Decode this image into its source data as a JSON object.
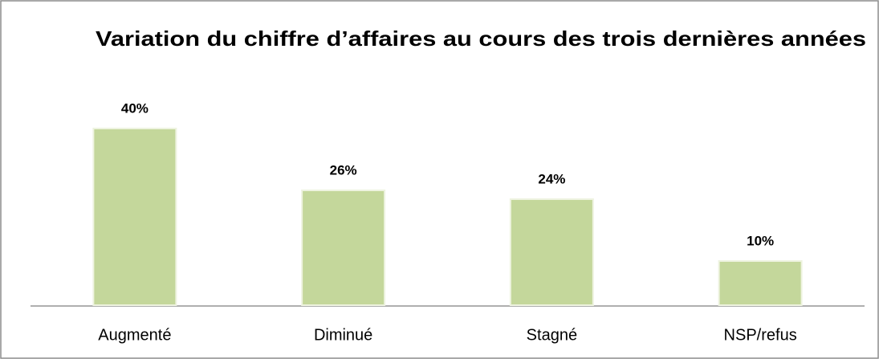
{
  "chart_data": {
    "type": "bar",
    "title": "Variation du chiffre d’affaires au cours des trois dernières années",
    "categories": [
      "Augmenté",
      "Diminué",
      "Stagné",
      "NSP/refus"
    ],
    "values": [
      40,
      26,
      24,
      10
    ],
    "value_labels": [
      "40%",
      "26%",
      "24%",
      "10%"
    ],
    "color": "#c4d79b"
  }
}
